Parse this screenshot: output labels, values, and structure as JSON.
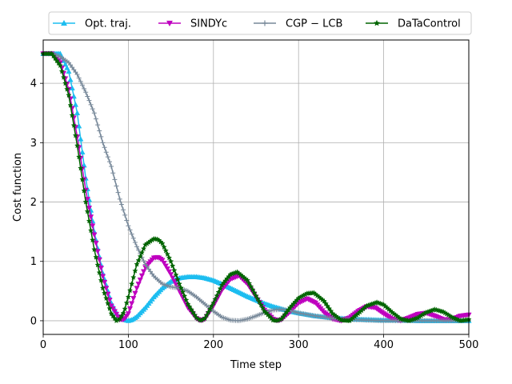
{
  "chart_data": {
    "type": "line",
    "title": "",
    "xlabel": "Time step",
    "ylabel": "Cost function",
    "xlim": [
      0,
      500
    ],
    "ylim": [
      -0.23,
      4.73
    ],
    "xticks": [
      0,
      100,
      200,
      300,
      400,
      500
    ],
    "yticks": [
      0,
      1,
      2,
      3,
      4
    ],
    "grid": true,
    "legend": {
      "placement": "top, outside plot, 4 columns"
    },
    "series": [
      {
        "name": "Opt. traj.",
        "color": "#1cbdf0",
        "marker": "triangle-up",
        "x": [
          0,
          20,
          30,
          40,
          50,
          60,
          70,
          80,
          88,
          95,
          100,
          105,
          110,
          120,
          130,
          140,
          150,
          160,
          170,
          180,
          190,
          200,
          210,
          220,
          230,
          240,
          250,
          260,
          270,
          280,
          290,
          300,
          320,
          340,
          360,
          380,
          400,
          420,
          440,
          460,
          480,
          500
        ],
        "y": [
          4.5,
          4.5,
          4.2,
          3.5,
          2.4,
          1.5,
          0.8,
          0.3,
          0.08,
          0.02,
          0.0,
          0.02,
          0.07,
          0.22,
          0.4,
          0.55,
          0.66,
          0.72,
          0.74,
          0.74,
          0.72,
          0.68,
          0.62,
          0.55,
          0.48,
          0.41,
          0.35,
          0.29,
          0.24,
          0.2,
          0.16,
          0.13,
          0.08,
          0.05,
          0.03,
          0.02,
          0.01,
          0.01,
          0.0,
          0.0,
          0.0,
          0.0
        ]
      },
      {
        "name": "SINDYc",
        "color": "#bf00bf",
        "marker": "triangle-down",
        "x": [
          0,
          10,
          20,
          30,
          40,
          50,
          60,
          70,
          80,
          90,
          95,
          100,
          110,
          120,
          130,
          135,
          140,
          150,
          160,
          170,
          180,
          185,
          190,
          200,
          210,
          220,
          230,
          240,
          250,
          260,
          270,
          275,
          280,
          290,
          300,
          310,
          320,
          330,
          340,
          350,
          360,
          370,
          380,
          390,
          400,
          410,
          420,
          430,
          440,
          450,
          460,
          470,
          480,
          490,
          500
        ],
        "y": [
          4.5,
          4.5,
          4.35,
          3.9,
          3.1,
          2.2,
          1.45,
          0.75,
          0.25,
          0.02,
          0.02,
          0.12,
          0.55,
          0.9,
          1.06,
          1.07,
          1.02,
          0.78,
          0.5,
          0.22,
          0.04,
          0.0,
          0.03,
          0.25,
          0.52,
          0.7,
          0.76,
          0.62,
          0.4,
          0.18,
          0.03,
          0.0,
          0.02,
          0.15,
          0.3,
          0.37,
          0.3,
          0.14,
          0.03,
          0.0,
          0.05,
          0.16,
          0.24,
          0.22,
          0.12,
          0.03,
          0.0,
          0.05,
          0.11,
          0.13,
          0.08,
          0.02,
          0.02,
          0.08,
          0.1
        ]
      },
      {
        "name": "CGP − LCB",
        "color": "#778899",
        "marker": "plus",
        "x": [
          0,
          10,
          20,
          30,
          40,
          50,
          60,
          70,
          80,
          90,
          100,
          110,
          120,
          130,
          140,
          150,
          160,
          170,
          180,
          190,
          200,
          210,
          220,
          230,
          240,
          250,
          260,
          270,
          280,
          290,
          300,
          320,
          340,
          360,
          380,
          400,
          420,
          440,
          460,
          480,
          500
        ],
        "y": [
          4.5,
          4.5,
          4.45,
          4.35,
          4.15,
          3.85,
          3.5,
          3.0,
          2.6,
          2.05,
          1.6,
          1.25,
          0.95,
          0.75,
          0.62,
          0.57,
          0.55,
          0.5,
          0.4,
          0.28,
          0.16,
          0.06,
          0.01,
          0.0,
          0.03,
          0.08,
          0.14,
          0.18,
          0.19,
          0.17,
          0.13,
          0.08,
          0.04,
          0.02,
          0.01,
          0.0,
          0.0,
          0.0,
          0.0,
          0.0,
          0.0
        ]
      },
      {
        "name": "DaTaControl",
        "color": "#006400",
        "marker": "star",
        "x": [
          0,
          10,
          20,
          30,
          40,
          50,
          60,
          70,
          80,
          86,
          90,
          95,
          100,
          110,
          120,
          130,
          135,
          140,
          150,
          160,
          170,
          180,
          185,
          190,
          200,
          210,
          220,
          228,
          240,
          250,
          260,
          270,
          275,
          280,
          290,
          300,
          310,
          318,
          330,
          340,
          350,
          360,
          370,
          380,
          392,
          400,
          410,
          420,
          430,
          440,
          450,
          460,
          470,
          480,
          490,
          500
        ],
        "y": [
          4.5,
          4.5,
          4.3,
          3.8,
          2.95,
          2.0,
          1.2,
          0.55,
          0.12,
          0.0,
          0.03,
          0.15,
          0.4,
          0.95,
          1.28,
          1.38,
          1.37,
          1.3,
          1.0,
          0.62,
          0.28,
          0.05,
          0.0,
          0.04,
          0.3,
          0.6,
          0.78,
          0.82,
          0.68,
          0.42,
          0.16,
          0.01,
          0.0,
          0.03,
          0.22,
          0.38,
          0.46,
          0.47,
          0.33,
          0.12,
          0.01,
          0.0,
          0.12,
          0.25,
          0.31,
          0.27,
          0.14,
          0.03,
          0.0,
          0.05,
          0.14,
          0.19,
          0.15,
          0.06,
          0.0,
          0.02
        ]
      }
    ]
  }
}
